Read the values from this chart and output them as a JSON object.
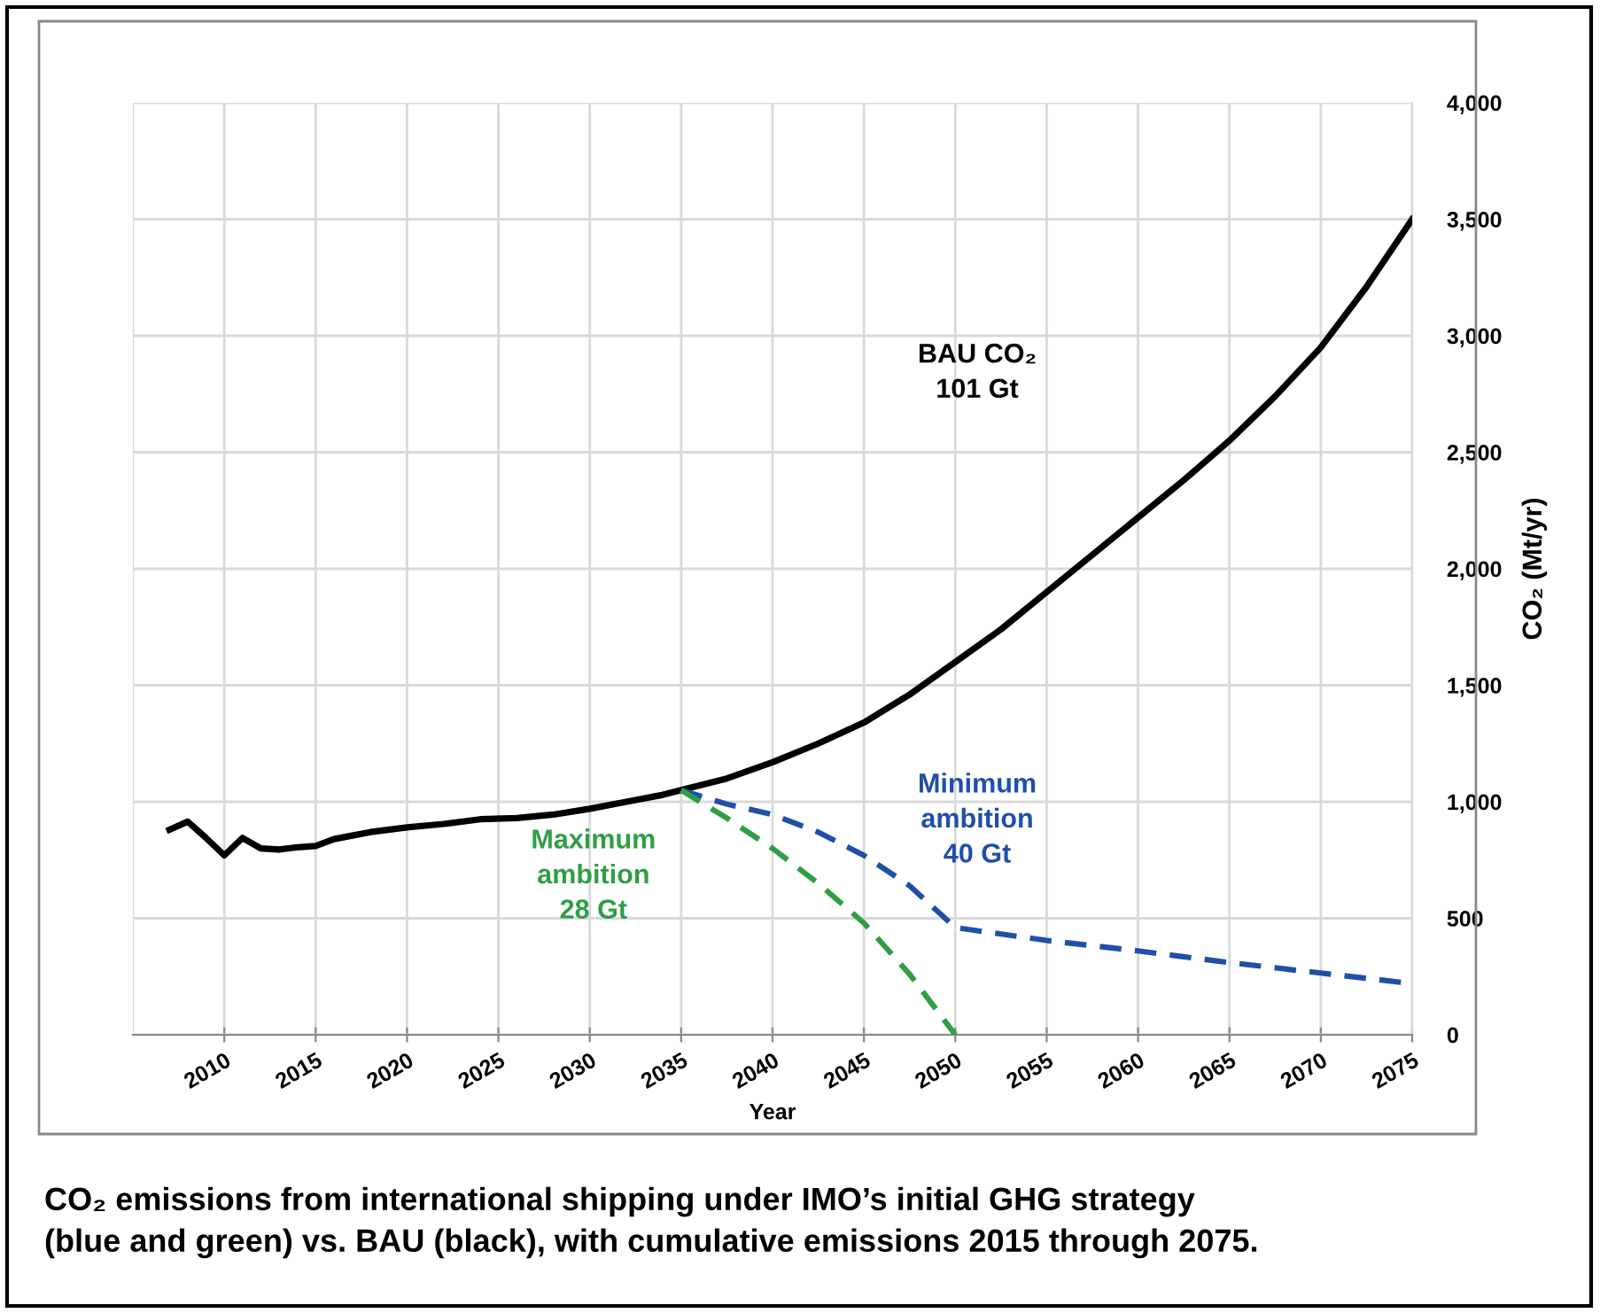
{
  "chart_data": {
    "type": "line",
    "xlabel": "Year",
    "ylabel": "CO₂ (Mt/yr)",
    "xlim": [
      2005,
      2075
    ],
    "xticks": [
      2010,
      2015,
      2020,
      2025,
      2030,
      2035,
      2040,
      2045,
      2050,
      2055,
      2060,
      2065,
      2070,
      2075
    ],
    "ylim": [
      0,
      4000
    ],
    "yticks": [
      0,
      {
        "value": 500,
        "label": "500"
      },
      {
        "value": 1000,
        "label": "1,000"
      },
      {
        "value": 1500,
        "label": "1,500"
      },
      {
        "value": 2000,
        "label": "2,000"
      },
      {
        "value": 2500,
        "label": "2,500"
      },
      {
        "value": 3000,
        "label": "3,000"
      },
      {
        "value": 3500,
        "label": "3,500"
      },
      {
        "value": 4000,
        "label": "4,000"
      }
    ],
    "grid": true,
    "marker": "none",
    "series": [
      {
        "name": "BAU CO₂\n101 Gt",
        "color": "#000000",
        "line_style": "solid",
        "x": [
          2007,
          2008,
          2009,
          2010,
          2011,
          2012,
          2013,
          2014,
          2015,
          2016,
          2017,
          2018,
          2020,
          2022,
          2024,
          2026,
          2028,
          2030,
          2032,
          2034,
          2035,
          2037.5,
          2040,
          2042.5,
          2045,
          2047.5,
          2050,
          2052.5,
          2055,
          2057.5,
          2060,
          2062.5,
          2065,
          2067.5,
          2070,
          2072.5,
          2075
        ],
        "values": [
          880,
          915,
          845,
          770,
          845,
          800,
          795,
          805,
          810,
          840,
          855,
          870,
          890,
          905,
          925,
          930,
          945,
          970,
          1000,
          1030,
          1050,
          1100,
          1170,
          1250,
          1340,
          1460,
          1600,
          1740,
          1900,
          2060,
          2220,
          2380,
          2550,
          2740,
          2950,
          3210,
          3500
        ]
      },
      {
        "name": "Minimum\nambition\n40 Gt",
        "color": "#1f4fa8",
        "line_style": "dashed",
        "x": [
          2035,
          2037.5,
          2040,
          2042.5,
          2045,
          2047.5,
          2050,
          2055,
          2060,
          2065,
          2070,
          2075
        ],
        "values": [
          1050,
          990,
          945,
          870,
          770,
          640,
          460,
          405,
          360,
          310,
          265,
          220
        ]
      },
      {
        "name": "Maximum\nambition\n28 Gt",
        "color": "#2e9e45",
        "line_style": "dashed",
        "x": [
          2035,
          2037.5,
          2040,
          2042.5,
          2045,
          2047.5,
          2050
        ],
        "values": [
          1050,
          930,
          800,
          650,
          480,
          260,
          0
        ]
      }
    ],
    "annotations": [
      "CO₂ emissions from international shipping under IMO’s initial GHG strategy\n(blue and green) vs. BAU (black), with cumulative emissions 2015 through 2075."
    ]
  }
}
